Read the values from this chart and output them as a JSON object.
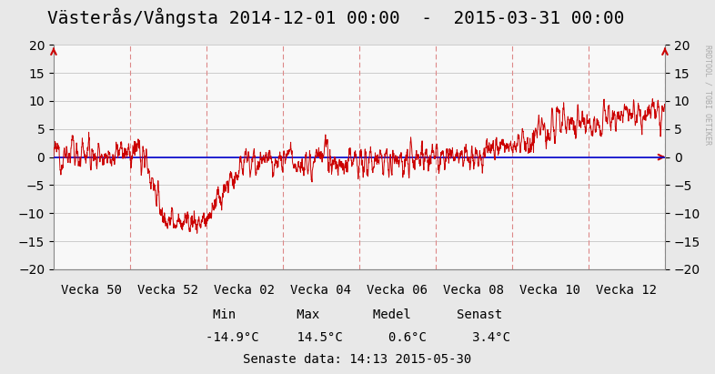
{
  "title": "Västerås/Vångsta 2014-12-01 00:00  -  2015-03-31 00:00",
  "watermark": "RRDTOOL / TOBI OETIKER",
  "xlabels": [
    "Vecka 50",
    "Vecka 52",
    "Vecka 02",
    "Vecka 04",
    "Vecka 06",
    "Vecka 08",
    "Vecka 10",
    "Vecka 12"
  ],
  "ylim": [
    -20,
    20
  ],
  "yticks_left": [
    -20,
    -15,
    -10,
    -5,
    0,
    5,
    10,
    15,
    20
  ],
  "yticks_right": [
    -20.0,
    -15.0,
    -10.0,
    -5.0,
    0.0,
    5.0,
    10.0,
    15.0,
    20.0
  ],
  "stats_labels": "Min        Max       Medel      Senast",
  "stats_values": "-14.9°C     14.5°C      0.6°C      3.4°C",
  "stats_date": "Senaste data: 14:13 2015-05-30",
  "line_color": "#cc0000",
  "zero_line_color": "#0000cc",
  "bg_color": "#e8e8e8",
  "plot_bg_color": "#f8f8f8",
  "vgrid_color": "#dd8888",
  "hgrid_color": "#cccccc",
  "arrow_color": "#cc0000",
  "title_fontsize": 14,
  "tick_fontsize": 10,
  "stats_fontsize": 10,
  "n_weeks": 8,
  "seed": 12345
}
